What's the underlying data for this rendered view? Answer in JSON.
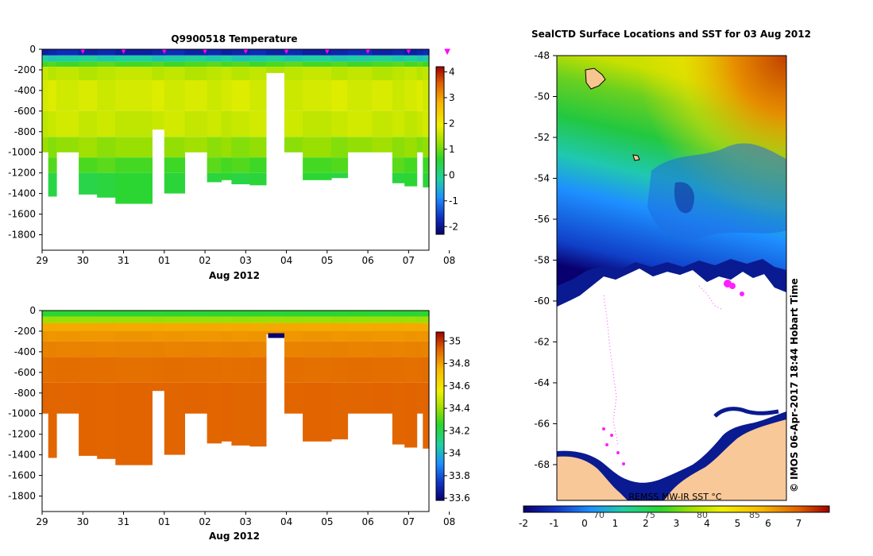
{
  "chart_data": [
    {
      "type": "heatmap",
      "title": "Q9900518  Temperature",
      "xlabel": "Aug 2012",
      "ylabel": "",
      "xticks": [
        "29",
        "30",
        "31",
        "01",
        "02",
        "03",
        "04",
        "05",
        "06",
        "07",
        "08"
      ],
      "yticks": [
        "0",
        "-200",
        "-400",
        "-600",
        "-800",
        "-1000",
        "-1200",
        "-1400",
        "-1600",
        "-1800"
      ],
      "ylim": [
        -1950,
        0
      ],
      "colorbar": {
        "min": -2.3,
        "max": 4.2,
        "ticks": [
          "-2",
          "-1",
          "0",
          "1",
          "2",
          "3",
          "4"
        ]
      },
      "profiles": [
        {
          "t": 0.0,
          "d": 1000
        },
        {
          "t": 0.15,
          "d": 1430
        },
        {
          "t": 0.35,
          "d": 1000
        },
        {
          "t": 0.9,
          "d": 1410
        },
        {
          "t": 1.35,
          "d": 1440
        },
        {
          "t": 1.8,
          "d": 1500
        },
        {
          "t": 2.7,
          "d": 780
        },
        {
          "t": 3.0,
          "d": 1400
        },
        {
          "t": 3.5,
          "d": 1000
        },
        {
          "t": 4.05,
          "d": 1290
        },
        {
          "t": 4.4,
          "d": 1270
        },
        {
          "t": 4.65,
          "d": 1310
        },
        {
          "t": 5.1,
          "d": 1320
        },
        {
          "t": 5.5,
          "d": 230
        },
        {
          "t": 5.95,
          "d": 1000
        },
        {
          "t": 6.4,
          "d": 1270
        },
        {
          "t": 7.1,
          "d": 1250
        },
        {
          "t": 7.5,
          "d": 1000
        },
        {
          "t": 8.1,
          "d": 1000
        },
        {
          "t": 8.6,
          "d": 1300
        },
        {
          "t": 8.9,
          "d": 1330
        },
        {
          "t": 9.2,
          "d": 1000
        },
        {
          "t": 9.35,
          "d": 1340
        }
      ],
      "bands": [
        {
          "d": 60,
          "v": -1.8
        },
        {
          "d": 120,
          "v": -0.2
        },
        {
          "d": 170,
          "v": 0.8
        },
        {
          "d": 300,
          "v": 1.5
        },
        {
          "d": 600,
          "v": 1.7
        },
        {
          "d": 850,
          "v": 1.6
        },
        {
          "d": 1050,
          "v": 1.2
        },
        {
          "d": 1200,
          "v": 0.8
        },
        {
          "d": 1500,
          "v": 0.5
        }
      ],
      "markers": [
        1.0,
        2.0,
        3.0,
        4.0,
        5.0,
        6.0,
        7.0,
        8.0,
        9.0,
        9.95
      ]
    },
    {
      "type": "heatmap",
      "title": "",
      "xlabel": "Aug 2012",
      "ylabel": "",
      "xticks": [
        "29",
        "30",
        "31",
        "01",
        "02",
        "03",
        "04",
        "05",
        "06",
        "07",
        "08"
      ],
      "yticks": [
        "0",
        "-200",
        "-400",
        "-600",
        "-800",
        "-1000",
        "-1200",
        "-1400",
        "-1600",
        "-1800"
      ],
      "ylim": [
        -1950,
        0
      ],
      "colorbar": {
        "min": 33.58,
        "max": 35.08,
        "ticks": [
          "33.6",
          "33.8",
          "34",
          "34.2",
          "34.4",
          "34.6",
          "34.8",
          "35"
        ]
      },
      "bands": [
        {
          "d": 60,
          "v": 34.25
        },
        {
          "d": 120,
          "v": 34.4
        },
        {
          "d": 200,
          "v": 34.78
        },
        {
          "d": 300,
          "v": 34.82
        },
        {
          "d": 450,
          "v": 34.86
        },
        {
          "d": 700,
          "v": 34.9
        },
        {
          "d": 2000,
          "v": 34.92
        }
      ]
    },
    {
      "type": "heatmap",
      "title": "SealCTD Surface Locations and SST for 03 Aug 2012",
      "xlabel": "",
      "ylabel": "",
      "yticks": [
        "-48",
        "-50",
        "-52",
        "-54",
        "-56",
        "-58",
        "-60",
        "-62",
        "-64",
        "-66",
        "-68"
      ],
      "ylim": [
        -69.75,
        -48
      ],
      "xticks_top": [
        "70",
        "75",
        "80",
        "85"
      ],
      "map_label": "REMSS MW-IR SST °C",
      "colorbar": {
        "min": -2,
        "max": 8,
        "ticks": [
          "-2",
          "-1",
          "0",
          "1",
          "2",
          "3",
          "4",
          "5",
          "6",
          "7"
        ]
      },
      "credit": "© IMOS 06-Apr-2017 18:44 Hobart Time"
    }
  ]
}
